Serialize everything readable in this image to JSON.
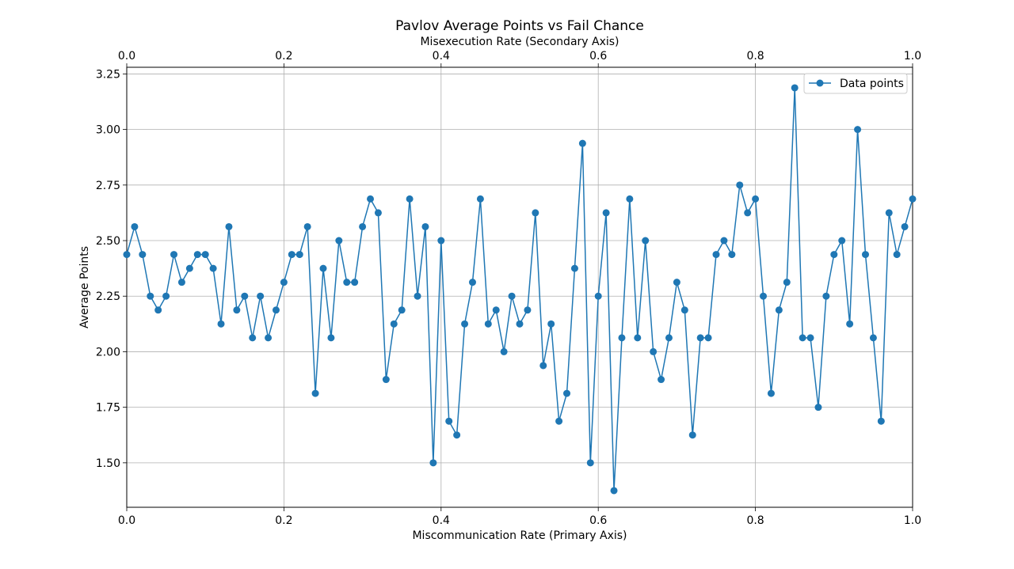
{
  "chart_data": {
    "type": "line",
    "title": "Pavlov Average Points vs Fail Chance",
    "xlabel": "Miscommunication Rate (Primary Axis)",
    "x2label": "Misexecution Rate (Secondary Axis)",
    "ylabel": "Average Points",
    "xlim": [
      0,
      1
    ],
    "ylim": [
      1.3,
      3.28
    ],
    "xticks": [
      "0.0",
      "0.2",
      "0.4",
      "0.6",
      "0.8",
      "1.0"
    ],
    "x2ticks": [
      "0.0",
      "0.2",
      "0.4",
      "0.6",
      "0.8",
      "1.0"
    ],
    "yticks": [
      "1.50",
      "1.75",
      "2.00",
      "2.25",
      "2.50",
      "2.75",
      "3.00",
      "3.25"
    ],
    "grid": true,
    "legend_position": "top-right",
    "line_color": "#1f77b4",
    "series": [
      {
        "name": "Data points",
        "x": [
          0.0,
          0.01,
          0.02,
          0.03,
          0.04,
          0.05,
          0.06,
          0.07,
          0.08,
          0.09,
          0.1,
          0.11,
          0.12,
          0.13,
          0.14,
          0.15,
          0.16,
          0.17,
          0.18,
          0.19,
          0.2,
          0.21,
          0.22,
          0.23,
          0.24,
          0.25,
          0.26,
          0.27,
          0.28,
          0.29,
          0.3,
          0.31,
          0.32,
          0.33,
          0.34,
          0.35,
          0.36,
          0.37,
          0.38,
          0.39,
          0.4,
          0.41,
          0.42,
          0.43,
          0.44,
          0.45,
          0.46,
          0.47,
          0.48,
          0.49,
          0.5,
          0.51,
          0.52,
          0.53,
          0.54,
          0.55,
          0.56,
          0.57,
          0.58,
          0.59,
          0.6,
          0.61,
          0.62,
          0.63,
          0.64,
          0.65,
          0.66,
          0.67,
          0.68,
          0.69,
          0.7,
          0.71,
          0.72,
          0.73,
          0.74,
          0.75,
          0.76,
          0.77,
          0.78,
          0.79,
          0.8,
          0.81,
          0.82,
          0.83,
          0.84,
          0.85,
          0.86,
          0.87,
          0.88,
          0.89,
          0.9,
          0.91,
          0.92,
          0.93,
          0.94,
          0.95,
          0.96,
          0.97,
          0.98,
          0.99,
          1.0
        ],
        "values": [
          2.4375,
          2.5625,
          2.4375,
          2.25,
          2.1875,
          2.25,
          2.4375,
          2.3125,
          2.375,
          2.4375,
          2.4375,
          2.375,
          2.125,
          2.5625,
          2.1875,
          2.25,
          2.0625,
          2.25,
          2.0625,
          2.1875,
          2.3125,
          2.4375,
          2.4375,
          2.5625,
          1.8125,
          2.375,
          2.0625,
          2.5,
          2.3125,
          2.3125,
          2.5625,
          2.6875,
          2.625,
          1.875,
          2.125,
          2.1875,
          2.6875,
          2.25,
          2.5625,
          1.5,
          2.5,
          1.6875,
          1.625,
          2.125,
          2.3125,
          2.6875,
          2.125,
          2.1875,
          2.0,
          2.25,
          2.125,
          2.1875,
          2.625,
          1.9375,
          2.125,
          1.6875,
          1.8125,
          2.375,
          2.9375,
          1.5,
          2.25,
          2.625,
          1.375,
          2.0625,
          2.6875,
          2.0625,
          2.5,
          2.0,
          1.875,
          2.0625,
          2.3125,
          2.1875,
          1.625,
          2.0625,
          2.0625,
          2.4375,
          2.5,
          2.4375,
          2.75,
          2.625,
          2.6875,
          2.25,
          1.8125,
          2.1875,
          2.3125,
          3.1875,
          2.0625,
          2.0625,
          1.75,
          2.25,
          2.4375,
          2.5,
          2.125,
          3.0,
          2.4375,
          2.0625,
          1.6875,
          2.625,
          2.4375,
          2.5625,
          2.6875
        ]
      }
    ]
  }
}
